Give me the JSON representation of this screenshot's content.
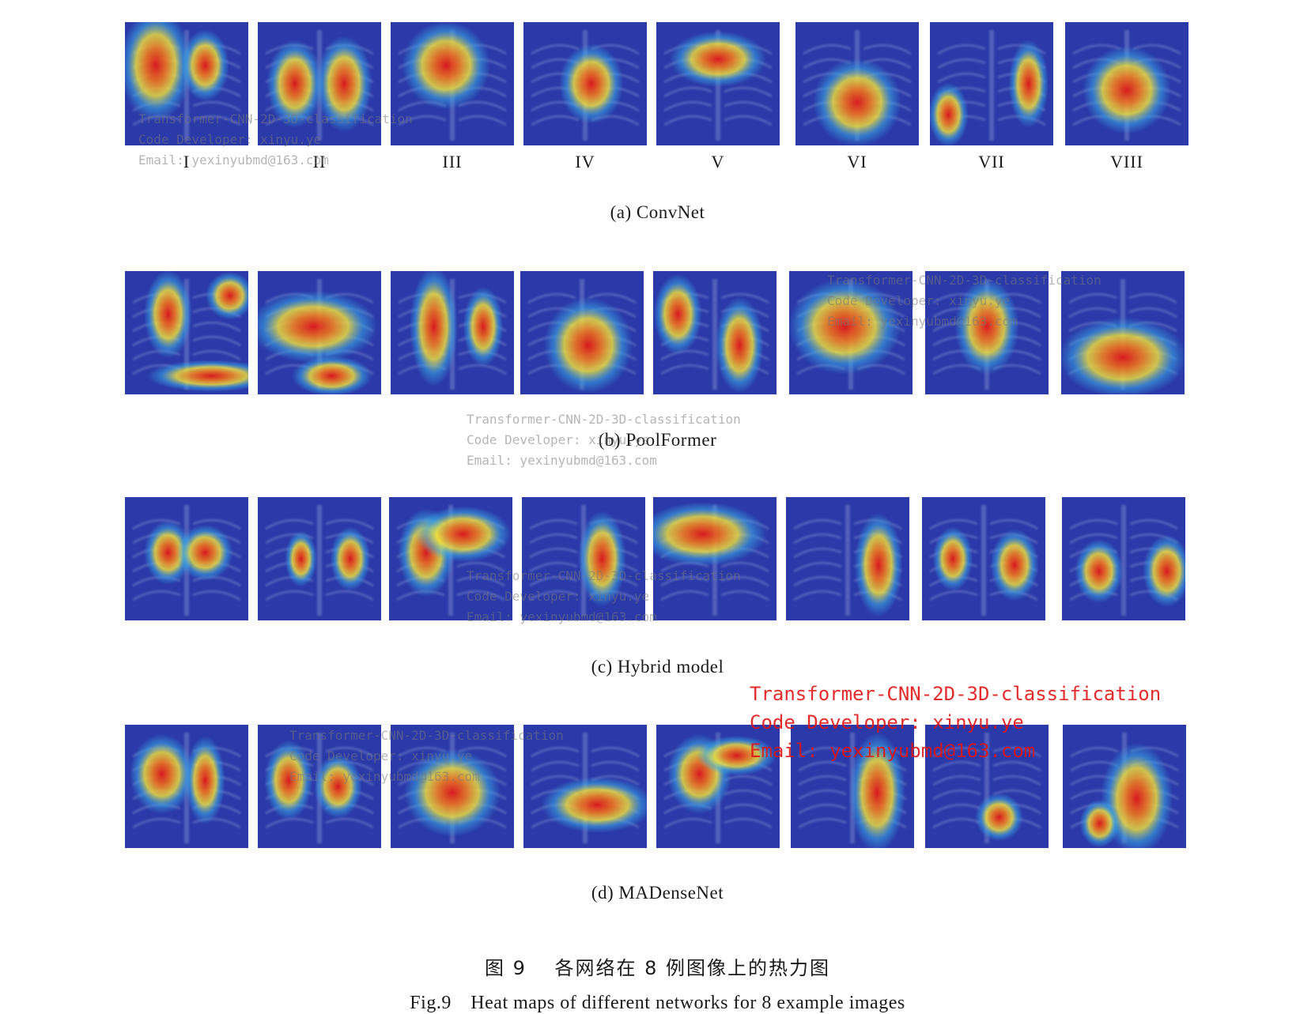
{
  "columns": [
    "I",
    "II",
    "III",
    "IV",
    "V",
    "VI",
    "VII",
    "VIII"
  ],
  "panels": [
    {
      "caption": "(a) ConvNet",
      "hot": [
        [
          [
            0.25,
            0.35,
            0.45,
            0.7
          ],
          [
            0.65,
            0.35,
            0.3,
            0.45
          ]
        ],
        [
          [
            0.3,
            0.5,
            0.35,
            0.55
          ],
          [
            0.7,
            0.5,
            0.35,
            0.6
          ]
        ],
        [
          [
            0.45,
            0.35,
            0.55,
            0.55
          ]
        ],
        [
          [
            0.55,
            0.5,
            0.4,
            0.5
          ]
        ],
        [
          [
            0.5,
            0.3,
            0.6,
            0.35
          ]
        ],
        [
          [
            0.5,
            0.65,
            0.55,
            0.55
          ]
        ],
        [
          [
            0.15,
            0.75,
            0.25,
            0.4
          ],
          [
            0.8,
            0.5,
            0.25,
            0.55
          ]
        ],
        [
          [
            0.5,
            0.55,
            0.55,
            0.55
          ]
        ]
      ]
    },
    {
      "caption": "(b) PoolFormer",
      "hot": [
        [
          [
            0.35,
            0.35,
            0.3,
            0.55
          ],
          [
            0.85,
            0.2,
            0.3,
            0.3
          ],
          [
            0.7,
            0.85,
            0.8,
            0.2
          ]
        ],
        [
          [
            0.45,
            0.45,
            0.8,
            0.45
          ],
          [
            0.6,
            0.85,
            0.5,
            0.25
          ]
        ],
        [
          [
            0.35,
            0.45,
            0.3,
            0.75
          ],
          [
            0.75,
            0.45,
            0.25,
            0.5
          ]
        ],
        [
          [
            0.55,
            0.6,
            0.55,
            0.6
          ]
        ],
        [
          [
            0.2,
            0.35,
            0.3,
            0.5
          ],
          [
            0.7,
            0.6,
            0.3,
            0.6
          ]
        ],
        [
          [
            0.45,
            0.45,
            0.7,
            0.6
          ]
        ],
        [
          [
            0.5,
            0.45,
            0.4,
            0.6
          ]
        ],
        [
          [
            0.5,
            0.7,
            0.8,
            0.5
          ]
        ]
      ]
    },
    {
      "caption": "(c) Hybrid model",
      "hot": [
        [
          [
            0.35,
            0.45,
            0.3,
            0.4
          ],
          [
            0.65,
            0.45,
            0.35,
            0.35
          ]
        ],
        [
          [
            0.35,
            0.5,
            0.2,
            0.35
          ],
          [
            0.75,
            0.5,
            0.25,
            0.4
          ]
        ],
        [
          [
            0.3,
            0.45,
            0.35,
            0.55
          ],
          [
            0.6,
            0.3,
            0.6,
            0.35
          ]
        ],
        [
          [
            0.65,
            0.5,
            0.3,
            0.6
          ]
        ],
        [
          [
            0.4,
            0.3,
            0.8,
            0.4
          ]
        ],
        [
          [
            0.75,
            0.55,
            0.3,
            0.65
          ]
        ],
        [
          [
            0.25,
            0.5,
            0.25,
            0.4
          ],
          [
            0.75,
            0.55,
            0.3,
            0.45
          ]
        ],
        [
          [
            0.3,
            0.6,
            0.3,
            0.4
          ],
          [
            0.85,
            0.6,
            0.3,
            0.45
          ]
        ]
      ]
    },
    {
      "caption": "(d) MADenseNet",
      "hot": [
        [
          [
            0.3,
            0.4,
            0.4,
            0.5
          ],
          [
            0.65,
            0.45,
            0.25,
            0.55
          ]
        ],
        [
          [
            0.25,
            0.45,
            0.3,
            0.5
          ],
          [
            0.65,
            0.5,
            0.3,
            0.4
          ]
        ],
        [
          [
            0.5,
            0.55,
            0.6,
            0.55
          ]
        ],
        [
          [
            0.6,
            0.65,
            0.7,
            0.35
          ]
        ],
        [
          [
            0.35,
            0.4,
            0.4,
            0.5
          ],
          [
            0.65,
            0.25,
            0.5,
            0.25
          ]
        ],
        [
          [
            0.7,
            0.55,
            0.35,
            0.75
          ]
        ],
        [
          [
            0.6,
            0.75,
            0.3,
            0.3
          ]
        ],
        [
          [
            0.6,
            0.6,
            0.45,
            0.7
          ],
          [
            0.3,
            0.8,
            0.25,
            0.3
          ]
        ]
      ]
    }
  ],
  "figure_caption_cn": "图 9　 各网络在 8 例图像上的热力图",
  "figure_caption_en": "Fig.9　Heat maps of different networks for 8 example images",
  "watermark": {
    "line1": "Transformer-CNN-2D-3D-classification",
    "line2": "Code Developer: xinyu.ye",
    "line3": "Email: yexinyubmd@163.com"
  },
  "colors": {
    "cold": "#2b3aa8",
    "cool": "#38a8e8",
    "warm": "#f4e43a",
    "hot": "#e01818"
  }
}
